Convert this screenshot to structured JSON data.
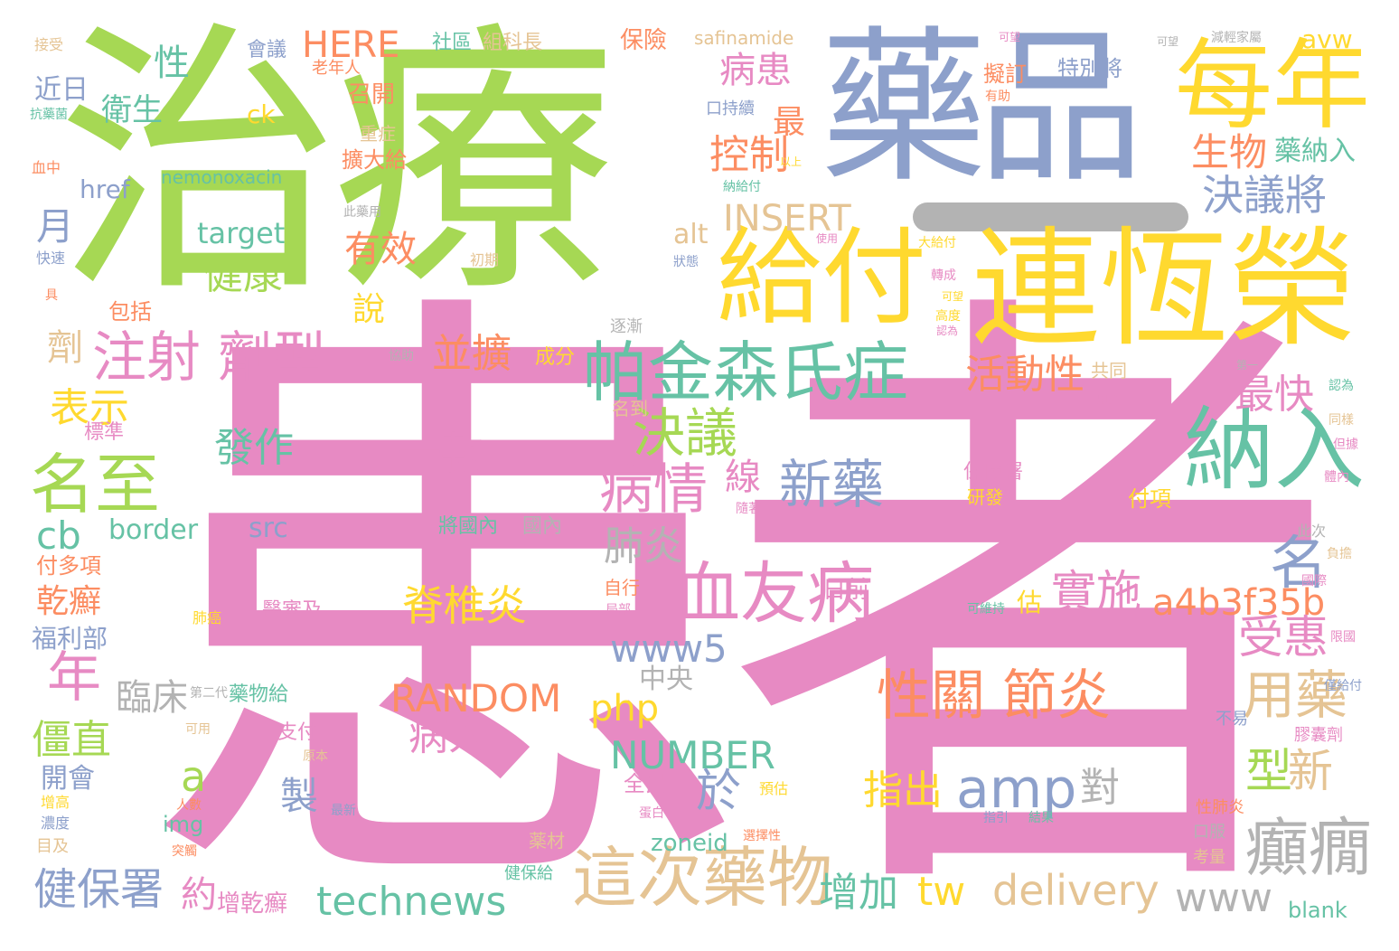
{
  "palette": {
    "green": "#a6d854",
    "pink": "#e78ac3",
    "blue": "#8da0cb",
    "yellow": "#ffd92f",
    "teal": "#66c2a5",
    "orange": "#fc8d62",
    "tan": "#e5c494",
    "gray": "#b3b3b3"
  },
  "decorations": {
    "bar_color": "#b3b3b3"
  },
  "words": [
    {
      "text": "治療",
      "color": "green"
    },
    {
      "text": "患者",
      "color": "pink"
    },
    {
      "text": "藥品",
      "color": "blue"
    },
    {
      "text": "每年",
      "color": "yellow"
    },
    {
      "text": "給付",
      "color": "yellow"
    },
    {
      "text": "連恆榮",
      "color": "yellow"
    },
    {
      "text": "帕金森氏症",
      "color": "teal"
    },
    {
      "text": "納入",
      "color": "teal"
    },
    {
      "text": "注射 劑型",
      "color": "pink"
    },
    {
      "text": "名至",
      "color": "green"
    },
    {
      "text": "血友病",
      "color": "pink"
    },
    {
      "text": "性關 節炎",
      "color": "orange"
    },
    {
      "text": "這次藥物",
      "color": "tan"
    },
    {
      "text": "癲癇",
      "color": "gray"
    },
    {
      "text": "新藥",
      "color": "blue"
    },
    {
      "text": "病情",
      "color": "pink"
    },
    {
      "text": "決議",
      "color": "green"
    },
    {
      "text": "決議將",
      "color": "blue"
    },
    {
      "text": "用藥",
      "color": "tan"
    },
    {
      "text": "名",
      "color": "blue"
    },
    {
      "text": "脊椎炎",
      "color": "yellow"
    },
    {
      "text": "一款",
      "color": "pink"
    },
    {
      "text": "發作",
      "color": "teal"
    },
    {
      "text": "amp",
      "color": "blue"
    },
    {
      "text": "technews",
      "color": "teal"
    },
    {
      "text": "delivery",
      "color": "tan"
    },
    {
      "text": "www",
      "color": "gray"
    },
    {
      "text": "www5",
      "color": "blue"
    },
    {
      "text": "a4b3f35b",
      "color": "orange"
    },
    {
      "text": "RANDOM",
      "color": "orange"
    },
    {
      "text": "NUMBER",
      "color": "teal"
    },
    {
      "text": "INSERT",
      "color": "tan"
    },
    {
      "text": "HERE",
      "color": "orange"
    },
    {
      "text": "受惠",
      "color": "pink"
    },
    {
      "text": "實施",
      "color": "pink"
    },
    {
      "text": "最快",
      "color": "pink"
    },
    {
      "text": "活動性",
      "color": "orange"
    },
    {
      "text": "並擴",
      "color": "orange"
    },
    {
      "text": "控制",
      "color": "orange"
    },
    {
      "text": "病患",
      "color": "pink"
    },
    {
      "text": "生物",
      "color": "orange"
    },
    {
      "text": "藥納入",
      "color": "teal"
    },
    {
      "text": "特別將",
      "color": "blue"
    },
    {
      "text": "擬訂",
      "color": "orange"
    },
    {
      "text": "有效",
      "color": "orange"
    },
    {
      "text": "健康",
      "color": "green"
    },
    {
      "text": "target",
      "color": "teal"
    },
    {
      "text": "alt",
      "color": "tan"
    },
    {
      "text": "php",
      "color": "yellow"
    },
    {
      "text": "tw",
      "color": "yellow"
    },
    {
      "text": "型",
      "color": "green"
    },
    {
      "text": "新",
      "color": "tan"
    },
    {
      "text": "對",
      "color": "gray"
    },
    {
      "text": "指出",
      "color": "yellow"
    },
    {
      "text": "於",
      "color": "blue"
    },
    {
      "text": "增加",
      "color": "teal"
    },
    {
      "text": "病人",
      "color": "pink"
    },
    {
      "text": "製",
      "color": "blue"
    },
    {
      "text": "臨床",
      "color": "gray"
    },
    {
      "text": "中央",
      "color": "gray"
    },
    {
      "text": "肺炎",
      "color": "gray"
    },
    {
      "text": "線",
      "color": "pink"
    },
    {
      "text": "表示",
      "color": "yellow"
    },
    {
      "text": "乾癬",
      "color": "orange"
    },
    {
      "text": "福利部",
      "color": "blue"
    },
    {
      "text": "年",
      "color": "pink"
    },
    {
      "text": "僵直",
      "color": "green"
    },
    {
      "text": "a",
      "color": "green"
    },
    {
      "text": "開會",
      "color": "blue"
    },
    {
      "text": "健保署",
      "color": "blue"
    },
    {
      "text": "約",
      "color": "pink"
    },
    {
      "text": "增乾癬",
      "color": "pink"
    },
    {
      "text": "cb",
      "color": "teal"
    },
    {
      "text": "border",
      "color": "teal"
    },
    {
      "text": "src",
      "color": "blue"
    },
    {
      "text": "img",
      "color": "teal"
    },
    {
      "text": "zoneid",
      "color": "teal"
    },
    {
      "text": "blank",
      "color": "teal"
    },
    {
      "text": "付多項",
      "color": "orange"
    },
    {
      "text": "月",
      "color": "blue"
    },
    {
      "text": "劑",
      "color": "tan"
    },
    {
      "text": "說",
      "color": "yellow"
    },
    {
      "text": "性",
      "color": "teal"
    },
    {
      "text": "衛生",
      "color": "teal"
    },
    {
      "text": "近日",
      "color": "blue"
    },
    {
      "text": "最",
      "color": "orange"
    },
    {
      "text": "ck",
      "color": "yellow"
    },
    {
      "text": "href",
      "color": "blue"
    },
    {
      "text": "會議",
      "color": "blue"
    },
    {
      "text": "社區",
      "color": "teal"
    },
    {
      "text": "組科長",
      "color": "tan"
    },
    {
      "text": "保險",
      "color": "orange"
    },
    {
      "text": "safinamide",
      "color": "tan"
    },
    {
      "text": "avw",
      "color": "yellow"
    },
    {
      "text": "老年人",
      "color": "orange"
    },
    {
      "text": "召開",
      "color": "orange"
    },
    {
      "text": "重症",
      "color": "tan"
    },
    {
      "text": "擴大給",
      "color": "orange"
    },
    {
      "text": "nemonoxacin",
      "color": "teal"
    },
    {
      "text": "口持續",
      "color": "blue"
    },
    {
      "text": "包括",
      "color": "orange"
    },
    {
      "text": "成分",
      "color": "yellow"
    },
    {
      "text": "名到",
      "color": "tan"
    },
    {
      "text": "標準",
      "color": "pink"
    },
    {
      "text": "保險署",
      "color": "pink"
    },
    {
      "text": "研發",
      "color": "yellow"
    },
    {
      "text": "將國內",
      "color": "teal"
    },
    {
      "text": "國內",
      "color": "gray"
    },
    {
      "text": "付項",
      "color": "yellow"
    },
    {
      "text": "共同",
      "color": "tan"
    },
    {
      "text": "日前",
      "color": "pink"
    },
    {
      "text": "估",
      "color": "yellow"
    },
    {
      "text": "自行",
      "color": "orange"
    },
    {
      "text": "全民",
      "color": "pink"
    },
    {
      "text": "支付",
      "color": "pink"
    },
    {
      "text": "藥物給",
      "color": "teal"
    },
    {
      "text": "薬材",
      "color": "tan"
    },
    {
      "text": "健保給",
      "color": "teal"
    },
    {
      "text": "醫審及",
      "color": "pink"
    },
    {
      "text": "肺癌",
      "color": "yellow"
    },
    {
      "text": "第二代",
      "color": "gray"
    },
    {
      "text": "逐漸",
      "color": "gray"
    },
    {
      "text": "接受",
      "color": "tan"
    },
    {
      "text": "抗藥菌",
      "color": "teal"
    },
    {
      "text": "血中",
      "color": "orange"
    },
    {
      "text": "快速",
      "color": "blue"
    },
    {
      "text": "可望",
      "color": "pink"
    },
    {
      "text": "可望",
      "color": "gray"
    },
    {
      "text": "減輕家屬",
      "color": "gray"
    },
    {
      "text": "有助",
      "color": "orange"
    },
    {
      "text": "以上",
      "color": "yellow"
    },
    {
      "text": "納給付",
      "color": "teal"
    },
    {
      "text": "初期",
      "color": "tan"
    },
    {
      "text": "高度",
      "color": "yellow"
    },
    {
      "text": "認為",
      "color": "teal"
    },
    {
      "text": "同樣",
      "color": "tan"
    },
    {
      "text": "但據",
      "color": "pink"
    },
    {
      "text": "負擔",
      "color": "tan"
    },
    {
      "text": "國際",
      "color": "pink"
    },
    {
      "text": "限國",
      "color": "pink"
    },
    {
      "text": "僅給付",
      "color": "blue"
    },
    {
      "text": "不易",
      "color": "blue"
    },
    {
      "text": "膠囊劑",
      "color": "pink"
    },
    {
      "text": "性肺炎",
      "color": "orange"
    },
    {
      "text": "口服",
      "color": "gray"
    },
    {
      "text": "考量",
      "color": "tan"
    },
    {
      "text": "此次",
      "color": "gray"
    },
    {
      "text": "可維持",
      "color": "teal"
    },
    {
      "text": "指引",
      "color": "blue"
    },
    {
      "text": "結果",
      "color": "teal"
    },
    {
      "text": "預估",
      "color": "yellow"
    },
    {
      "text": "選擇性",
      "color": "orange"
    },
    {
      "text": "最新",
      "color": "blue"
    },
    {
      "text": "人數",
      "color": "orange"
    },
    {
      "text": "增高",
      "color": "yellow"
    },
    {
      "text": "濃度",
      "color": "blue"
    },
    {
      "text": "目及",
      "color": "tan"
    },
    {
      "text": "突觸",
      "color": "orange"
    },
    {
      "text": "可用",
      "color": "tan"
    },
    {
      "text": "原本",
      "color": "tan"
    },
    {
      "text": "蛋白",
      "color": "pink"
    },
    {
      "text": "局部",
      "color": "pink"
    },
    {
      "text": "體內",
      "color": "pink"
    },
    {
      "text": "第一",
      "color": "gray"
    },
    {
      "text": "用於",
      "color": "pink"
    },
    {
      "text": "隨著",
      "color": "pink"
    },
    {
      "text": "協助",
      "color": "gray"
    },
    {
      "text": "此藥用",
      "color": "gray"
    },
    {
      "text": "使用",
      "color": "pink"
    },
    {
      "text": "狀態",
      "color": "blue"
    },
    {
      "text": "轉成",
      "color": "pink"
    },
    {
      "text": "大給付",
      "color": "yellow"
    },
    {
      "text": "可望",
      "color": "yellow"
    },
    {
      "text": "認為",
      "color": "pink"
    },
    {
      "text": "具",
      "color": "orange"
    }
  ]
}
